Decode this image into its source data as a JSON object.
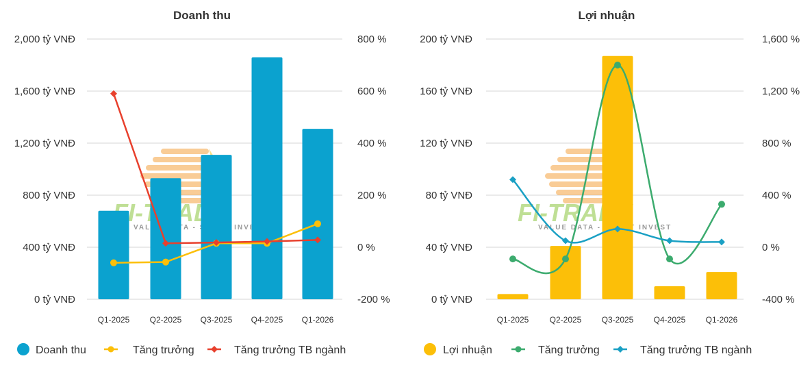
{
  "watermark": {
    "logo_text": "FI-TRADE",
    "tagline": "VALUE DATA - SMART INVEST"
  },
  "chart_data": [
    {
      "type": "bar",
      "title": "Doanh thu",
      "categories": [
        "Q1-2025",
        "Q2-2025",
        "Q3-2025",
        "Q4-2025",
        "Q1-2026"
      ],
      "y_left": {
        "ticks": [
          "0 tỷ VNĐ",
          "400 tỷ VNĐ",
          "800 tỷ VNĐ",
          "1,200 tỷ VNĐ",
          "1,600 tỷ VNĐ",
          "2,000 tỷ VNĐ"
        ],
        "range": [
          0,
          2000
        ]
      },
      "y_right": {
        "ticks": [
          "-200 %",
          "0 %",
          "200 %",
          "400 %",
          "600 %",
          "800 %"
        ],
        "range": [
          -200,
          800
        ]
      },
      "bar_series": {
        "name": "Doanh thu",
        "color": "#0ba2cf",
        "values": [
          680,
          930,
          1110,
          1860,
          1310
        ]
      },
      "line_series": [
        {
          "name": "Tăng trưởng",
          "color": "#fcbf08",
          "axis": "right",
          "marker": "circle",
          "smooth": false,
          "values": [
            -60,
            -57,
            15,
            15,
            90
          ]
        },
        {
          "name": "Tăng trưởng TB ngành",
          "color": "#e8402d",
          "axis": "right",
          "marker": "diamond",
          "smooth": false,
          "values": [
            590,
            15,
            18,
            22,
            28
          ]
        }
      ],
      "grid": true,
      "legend_position": "bottom-left"
    },
    {
      "type": "bar",
      "title": "Lợi nhuận",
      "categories": [
        "Q1-2025",
        "Q2-2025",
        "Q3-2025",
        "Q4-2025",
        "Q1-2026"
      ],
      "y_left": {
        "ticks": [
          "0 tỷ VNĐ",
          "40 tỷ VNĐ",
          "80 tỷ VNĐ",
          "120 tỷ VNĐ",
          "160 tỷ VNĐ",
          "200 tỷ VNĐ"
        ],
        "range": [
          0,
          200
        ]
      },
      "y_right": {
        "ticks": [
          "-400 %",
          "0 %",
          "400 %",
          "800 %",
          "1,200 %",
          "1,600 %"
        ],
        "range": [
          -400,
          1600
        ]
      },
      "bar_series": {
        "name": "Lợi nhuận",
        "color": "#fcbf08",
        "values": [
          4,
          41,
          187,
          10,
          21
        ]
      },
      "line_series": [
        {
          "name": "Tăng trưởng",
          "color": "#3cab6e",
          "axis": "right",
          "marker": "circle",
          "smooth": true,
          "values": [
            -90,
            -90,
            1400,
            -90,
            330
          ]
        },
        {
          "name": "Tăng trưởng TB ngành",
          "color": "#1aa0c4",
          "axis": "right",
          "marker": "diamond",
          "smooth": true,
          "values": [
            520,
            50,
            140,
            50,
            40
          ]
        }
      ],
      "grid": true,
      "legend_position": "bottom-left"
    }
  ]
}
